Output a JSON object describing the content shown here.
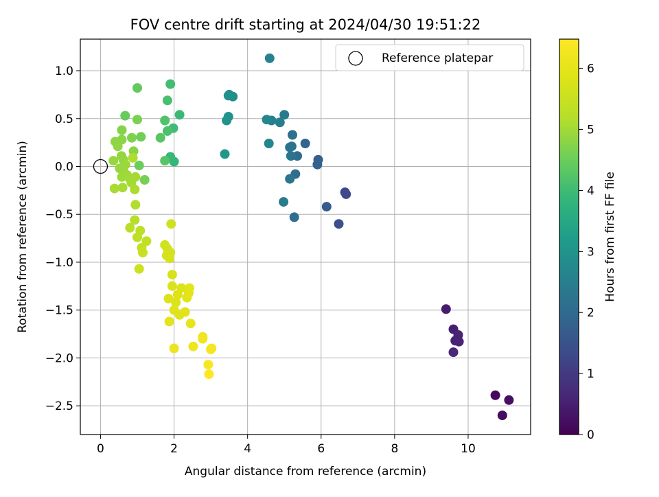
{
  "chart_data": {
    "type": "scatter",
    "title": "FOV centre drift starting at 2024/04/30 19:51:22",
    "xlabel": "Angular distance from reference (arcmin)",
    "ylabel": "Rotation from reference (arcmin)",
    "xlim": [
      -0.55,
      11.7
    ],
    "ylim": [
      -2.8,
      1.33
    ],
    "xticks": [
      0,
      2,
      4,
      6,
      8,
      10
    ],
    "xtick_labels": [
      "0",
      "2",
      "4",
      "6",
      "8",
      "10"
    ],
    "yticks": [
      1.0,
      0.5,
      0.0,
      -0.5,
      -1.0,
      -1.5,
      -2.0,
      -2.5
    ],
    "ytick_labels": [
      "1.0",
      "0.5",
      "0.0",
      "−0.5",
      "−1.0",
      "−1.5",
      "−2.0",
      "−2.5"
    ],
    "grid": true,
    "colormap": "viridis",
    "colorbar": {
      "label": "Hours from first FF file",
      "range": [
        0,
        6.48
      ],
      "ticks": [
        0,
        1,
        2,
        3,
        4,
        5,
        6
      ],
      "tick_labels": [
        "0",
        "1",
        "2",
        "3",
        "4",
        "5",
        "6"
      ]
    },
    "legend": {
      "position": "top-right",
      "entries": [
        {
          "label": "Reference platepar",
          "marker": "open-circle"
        }
      ]
    },
    "reference_point": {
      "x": 0,
      "y": 0
    },
    "points": [
      {
        "x": 10.74,
        "y": -2.39,
        "t": 0.15
      },
      {
        "x": 10.93,
        "y": -2.6,
        "t": 0.2
      },
      {
        "x": 11.11,
        "y": -2.44,
        "t": 0.25
      },
      {
        "x": 9.4,
        "y": -1.49,
        "t": 0.45
      },
      {
        "x": 9.6,
        "y": -1.7,
        "t": 0.5
      },
      {
        "x": 9.65,
        "y": -1.82,
        "t": 0.55
      },
      {
        "x": 9.73,
        "y": -1.76,
        "t": 0.58
      },
      {
        "x": 9.75,
        "y": -1.83,
        "t": 0.6
      },
      {
        "x": 9.6,
        "y": -1.94,
        "t": 0.65
      },
      {
        "x": 6.65,
        "y": -0.27,
        "t": 1.3
      },
      {
        "x": 6.68,
        "y": -0.29,
        "t": 1.32
      },
      {
        "x": 6.48,
        "y": -0.6,
        "t": 1.45
      },
      {
        "x": 6.15,
        "y": -0.42,
        "t": 1.65
      },
      {
        "x": 5.92,
        "y": 0.07,
        "t": 1.75
      },
      {
        "x": 5.9,
        "y": 0.02,
        "t": 1.8
      },
      {
        "x": 5.57,
        "y": 0.24,
        "t": 1.9
      },
      {
        "x": 5.35,
        "y": 0.11,
        "t": 2.0
      },
      {
        "x": 5.3,
        "y": -0.08,
        "t": 2.05
      },
      {
        "x": 5.27,
        "y": -0.53,
        "t": 2.1
      },
      {
        "x": 5.22,
        "y": 0.33,
        "t": 2.15
      },
      {
        "x": 5.2,
        "y": 0.21,
        "t": 2.2
      },
      {
        "x": 5.15,
        "y": 0.2,
        "t": 2.22
      },
      {
        "x": 5.18,
        "y": 0.11,
        "t": 2.25
      },
      {
        "x": 5.15,
        "y": -0.13,
        "t": 2.3
      },
      {
        "x": 5.0,
        "y": 0.54,
        "t": 2.4
      },
      {
        "x": 4.98,
        "y": -0.37,
        "t": 2.45
      },
      {
        "x": 4.88,
        "y": 0.46,
        "t": 2.5
      },
      {
        "x": 4.65,
        "y": 0.48,
        "t": 2.55
      },
      {
        "x": 4.6,
        "y": 1.13,
        "t": 2.6
      },
      {
        "x": 4.58,
        "y": 0.24,
        "t": 2.65
      },
      {
        "x": 4.52,
        "y": 0.49,
        "t": 2.7
      },
      {
        "x": 3.6,
        "y": 0.73,
        "t": 2.85
      },
      {
        "x": 3.5,
        "y": 0.75,
        "t": 2.9
      },
      {
        "x": 3.48,
        "y": 0.74,
        "t": 2.92
      },
      {
        "x": 3.48,
        "y": 0.52,
        "t": 2.95
      },
      {
        "x": 3.43,
        "y": 0.48,
        "t": 3.0
      },
      {
        "x": 3.38,
        "y": 0.13,
        "t": 3.05
      },
      {
        "x": 2.0,
        "y": 0.05,
        "t": 3.85
      },
      {
        "x": 1.9,
        "y": 0.1,
        "t": 3.9
      },
      {
        "x": 2.15,
        "y": 0.54,
        "t": 3.95
      },
      {
        "x": 1.98,
        "y": 0.4,
        "t": 4.0
      },
      {
        "x": 1.9,
        "y": 0.86,
        "t": 4.05
      },
      {
        "x": 1.82,
        "y": 0.69,
        "t": 4.1
      },
      {
        "x": 1.82,
        "y": 0.37,
        "t": 4.15
      },
      {
        "x": 1.75,
        "y": 0.48,
        "t": 4.2
      },
      {
        "x": 1.75,
        "y": 0.06,
        "t": 4.25
      },
      {
        "x": 1.63,
        "y": 0.3,
        "t": 4.3
      },
      {
        "x": 1.0,
        "y": 0.82,
        "t": 4.4
      },
      {
        "x": 0.67,
        "y": 0.53,
        "t": 4.45
      },
      {
        "x": 1.05,
        "y": 0.01,
        "t": 4.5
      },
      {
        "x": 1.1,
        "y": 0.31,
        "t": 4.55
      },
      {
        "x": 1.2,
        "y": -0.14,
        "t": 4.6
      },
      {
        "x": 1.0,
        "y": 0.49,
        "t": 4.65
      },
      {
        "x": 0.85,
        "y": 0.3,
        "t": 4.7
      },
      {
        "x": 0.58,
        "y": 0.38,
        "t": 4.75
      },
      {
        "x": 0.9,
        "y": 0.16,
        "t": 4.78
      },
      {
        "x": 0.58,
        "y": 0.28,
        "t": 4.8
      },
      {
        "x": 0.4,
        "y": 0.26,
        "t": 4.82
      },
      {
        "x": 0.47,
        "y": 0.21,
        "t": 4.85
      },
      {
        "x": 0.57,
        "y": 0.11,
        "t": 4.87
      },
      {
        "x": 0.62,
        "y": 0.07,
        "t": 4.88
      },
      {
        "x": 0.35,
        "y": 0.06,
        "t": 4.9
      },
      {
        "x": 0.52,
        "y": -0.02,
        "t": 4.92
      },
      {
        "x": 0.62,
        "y": -0.03,
        "t": 4.93
      },
      {
        "x": 0.68,
        "y": 0.02,
        "t": 4.95
      },
      {
        "x": 0.58,
        "y": -0.11,
        "t": 4.97
      },
      {
        "x": 0.72,
        "y": -0.09,
        "t": 4.98
      },
      {
        "x": 0.8,
        "y": -0.13,
        "t": 5.0
      },
      {
        "x": 0.84,
        "y": -0.17,
        "t": 5.02
      },
      {
        "x": 0.95,
        "y": -0.11,
        "t": 5.04
      },
      {
        "x": 0.6,
        "y": -0.22,
        "t": 5.06
      },
      {
        "x": 0.38,
        "y": -0.23,
        "t": 5.08
      },
      {
        "x": 0.93,
        "y": -0.24,
        "t": 5.1
      },
      {
        "x": 0.88,
        "y": 0.09,
        "t": 5.12
      },
      {
        "x": 0.95,
        "y": -0.4,
        "t": 5.15
      },
      {
        "x": 0.93,
        "y": -0.56,
        "t": 5.2
      },
      {
        "x": 0.8,
        "y": -0.64,
        "t": 5.25
      },
      {
        "x": 1.08,
        "y": -0.67,
        "t": 5.3
      },
      {
        "x": 1.0,
        "y": -0.74,
        "t": 5.35
      },
      {
        "x": 1.25,
        "y": -0.78,
        "t": 5.4
      },
      {
        "x": 1.12,
        "y": -0.85,
        "t": 5.45
      },
      {
        "x": 1.15,
        "y": -0.9,
        "t": 5.5
      },
      {
        "x": 1.05,
        "y": -1.07,
        "t": 5.55
      },
      {
        "x": 1.92,
        "y": -0.6,
        "t": 5.6
      },
      {
        "x": 1.75,
        "y": -0.82,
        "t": 5.62
      },
      {
        "x": 1.82,
        "y": -0.86,
        "t": 5.65
      },
      {
        "x": 1.9,
        "y": -0.9,
        "t": 5.67
      },
      {
        "x": 1.8,
        "y": -0.93,
        "t": 5.7
      },
      {
        "x": 1.88,
        "y": -0.96,
        "t": 5.72
      },
      {
        "x": 1.95,
        "y": -1.13,
        "t": 5.75
      },
      {
        "x": 1.95,
        "y": -1.25,
        "t": 5.78
      },
      {
        "x": 2.2,
        "y": -1.27,
        "t": 5.8
      },
      {
        "x": 1.85,
        "y": -1.38,
        "t": 5.82
      },
      {
        "x": 2.1,
        "y": -1.34,
        "t": 5.84
      },
      {
        "x": 2.05,
        "y": -1.42,
        "t": 5.86
      },
      {
        "x": 2.0,
        "y": -1.5,
        "t": 5.88
      },
      {
        "x": 2.15,
        "y": -1.55,
        "t": 5.9
      },
      {
        "x": 2.3,
        "y": -1.52,
        "t": 5.92
      },
      {
        "x": 2.35,
        "y": -1.37,
        "t": 5.94
      },
      {
        "x": 2.4,
        "y": -1.32,
        "t": 5.96
      },
      {
        "x": 2.42,
        "y": -1.27,
        "t": 5.98
      },
      {
        "x": 1.87,
        "y": -1.62,
        "t": 6.0
      },
      {
        "x": 2.45,
        "y": -1.64,
        "t": 6.05
      },
      {
        "x": 2.0,
        "y": -1.9,
        "t": 6.1
      },
      {
        "x": 2.52,
        "y": -1.88,
        "t": 6.15
      },
      {
        "x": 2.78,
        "y": -1.78,
        "t": 6.2
      },
      {
        "x": 2.78,
        "y": -1.8,
        "t": 6.22
      },
      {
        "x": 3.02,
        "y": -1.9,
        "t": 6.3
      },
      {
        "x": 3.0,
        "y": -1.91,
        "t": 6.32
      },
      {
        "x": 2.93,
        "y": -2.07,
        "t": 6.38
      },
      {
        "x": 2.95,
        "y": -2.17,
        "t": 6.45
      }
    ]
  }
}
